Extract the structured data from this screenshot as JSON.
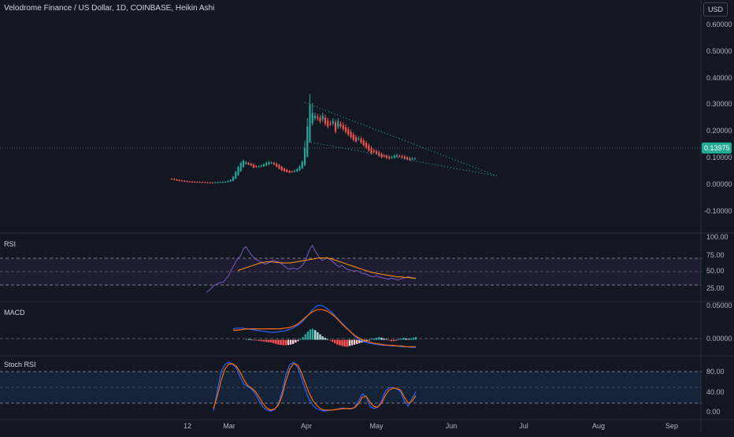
{
  "header": {
    "title": "Velodrome Finance / US Dollar, 1D, COINBASE, Heikin Ashi",
    "currency_button": "USD"
  },
  "colors": {
    "background": "#131722",
    "up": "#26a69a",
    "down": "#ef5350",
    "rsi_line": "#7e57c2",
    "rsi_ma": "#ff9800",
    "macd_line": "#2962ff",
    "signal_line": "#ff6d00",
    "stoch_k": "#2962ff",
    "stoch_d": "#ff6d00",
    "trendline": "#26a69a",
    "price_label_bg": "#22ab94"
  },
  "x_axis": {
    "labels": [
      "12",
      "Mar",
      "Apr",
      "May",
      "Jun",
      "Jul",
      "Aug",
      "Sep"
    ]
  },
  "chart_data": [
    {
      "type": "candlestick",
      "name": "price",
      "title": "Velodrome Finance / US Dollar, 1D, COINBASE, Heikin Ashi",
      "y_ticks": [
        "0.60000",
        "0.50000",
        "0.40000",
        "0.30000",
        "0.20000",
        "0.10000",
        "0.00000",
        "-0.10000"
      ],
      "ylim": [
        -0.13,
        0.68
      ],
      "last_price": "0.13975",
      "candle_close": [
        0.063,
        0.06,
        0.058,
        0.056,
        0.055,
        0.054,
        0.053,
        0.053,
        0.052,
        0.052,
        0.052,
        0.051,
        0.051,
        0.05,
        0.05,
        0.05,
        0.05,
        0.051,
        0.051,
        0.052,
        0.052,
        0.053,
        0.056,
        0.06,
        0.072,
        0.09,
        0.108,
        0.124,
        0.132,
        0.126,
        0.118,
        0.114,
        0.106,
        0.108,
        0.11,
        0.113,
        0.118,
        0.123,
        0.126,
        0.124,
        0.118,
        0.11,
        0.102,
        0.096,
        0.093,
        0.09,
        0.088,
        0.09,
        0.094,
        0.1,
        0.11,
        0.128,
        0.18,
        0.26,
        0.34,
        0.31,
        0.3,
        0.29,
        0.28,
        0.3,
        0.27,
        0.26,
        0.27,
        0.28,
        0.24,
        0.28,
        0.26,
        0.25,
        0.24,
        0.23,
        0.22,
        0.21,
        0.205,
        0.215,
        0.2,
        0.19,
        0.18,
        0.17,
        0.16,
        0.165,
        0.158,
        0.15,
        0.145,
        0.148,
        0.142,
        0.14,
        0.145,
        0.15,
        0.152,
        0.148,
        0.145,
        0.14,
        0.138,
        0.135,
        0.14,
        0.13975
      ],
      "trendlines": [
        {
          "from": {
            "day": 52,
            "price": 0.35
          },
          "to": {
            "day": 127,
            "price": 0.075
          }
        },
        {
          "from": {
            "day": 52,
            "price": 0.205
          },
          "to": {
            "day": 127,
            "price": 0.075
          }
        }
      ]
    },
    {
      "type": "line",
      "name": "RSI",
      "label": "RSI",
      "y_ticks": [
        "100.00",
        "75.00",
        "50.00",
        "25.00"
      ],
      "ylim": [
        20,
        103
      ],
      "band": [
        30,
        70
      ],
      "rsi": [
        14,
        16,
        20,
        24,
        26,
        28,
        29,
        30,
        35,
        40,
        48,
        55,
        62,
        68,
        72,
        82,
        86,
        80,
        74,
        70,
        66,
        64,
        62,
        60,
        58,
        60,
        62,
        64,
        63,
        62,
        60,
        57,
        54,
        51,
        50,
        52,
        51,
        50,
        53,
        56,
        62,
        72,
        82,
        88,
        80,
        74,
        68,
        64,
        66,
        69,
        66,
        63,
        60,
        56,
        54,
        56,
        53,
        50,
        49,
        48,
        47,
        48,
        46,
        44,
        43,
        42,
        40,
        39,
        38,
        40,
        38,
        37,
        36,
        35,
        34,
        36,
        35,
        34,
        33,
        35,
        36,
        37,
        38,
        37,
        36,
        35
      ],
      "rsi_start_day": 0,
      "rsi_ma": [
        48,
        50,
        52,
        54,
        56,
        58,
        60,
        61,
        62,
        62,
        61,
        61,
        60,
        60,
        60,
        61,
        62,
        63,
        64,
        65,
        66,
        67,
        68,
        68,
        68,
        67,
        65,
        63,
        61,
        59,
        57,
        55,
        53,
        51,
        49,
        47,
        45,
        44,
        43,
        42,
        41,
        40,
        39,
        38,
        38,
        37,
        37,
        36,
        36
      ]
    },
    {
      "type": "histogram+line",
      "name": "MACD",
      "label": "MACD",
      "y_ticks": [
        "0.05000",
        "0.00000"
      ],
      "ylim": [
        -0.02,
        0.052
      ],
      "histogram": [
        0.001,
        0.0008,
        0.0005,
        -0.0005,
        -0.001,
        -0.0015,
        -0.002,
        -0.0025,
        -0.003,
        -0.0035,
        -0.004,
        -0.005,
        -0.006,
        -0.007,
        -0.0075,
        -0.008,
        -0.008,
        -0.0075,
        -0.007,
        -0.006,
        -0.004,
        -0.002,
        0.001,
        0.004,
        0.008,
        0.012,
        0.015,
        0.016,
        0.014,
        0.011,
        0.008,
        0.005,
        0.003,
        0.001,
        -0.001,
        -0.003,
        -0.005,
        -0.007,
        -0.008,
        -0.009,
        -0.01,
        -0.01,
        -0.009,
        -0.008,
        -0.007,
        -0.006,
        -0.005,
        -0.004,
        -0.003,
        -0.002,
        -0.001,
        0.001,
        0.002,
        0.003,
        0.004,
        0.003,
        0.002,
        0.001,
        -0.001,
        -0.002,
        -0.002,
        -0.001,
        0.001,
        0.002,
        0.003,
        0.002,
        0.001,
        0.002,
        0.003,
        0.004
      ],
      "macd": [
        0.016,
        0.017,
        0.017,
        0.016,
        0.015,
        0.014,
        0.013,
        0.012,
        0.011,
        0.011,
        0.012,
        0.013,
        0.015,
        0.018,
        0.022,
        0.028,
        0.036,
        0.044,
        0.05,
        0.05,
        0.046,
        0.04,
        0.033,
        0.026,
        0.019,
        0.012,
        0.005,
        0,
        -0.003,
        -0.005,
        -0.006,
        -0.007,
        -0.008,
        -0.008,
        -0.009,
        -0.009,
        -0.01,
        -0.01,
        -0.011,
        -0.011
      ],
      "signal": [
        0.014,
        0.014,
        0.015,
        0.016,
        0.016,
        0.016,
        0.016,
        0.016,
        0.016,
        0.016,
        0.016,
        0.017,
        0.018,
        0.02,
        0.024,
        0.03,
        0.036,
        0.041,
        0.044,
        0.044,
        0.042,
        0.038,
        0.032,
        0.025,
        0.018,
        0.012,
        0.006,
        0.002,
        -0.001,
        -0.003,
        -0.005,
        -0.006,
        -0.007,
        -0.008,
        -0.008,
        -0.009,
        -0.009,
        -0.01,
        -0.01,
        -0.01
      ]
    },
    {
      "type": "line",
      "name": "Stoch RSI",
      "label": "Stoch RSI",
      "y_ticks": [
        "80.00",
        "40.00",
        "0.00"
      ],
      "ylim": [
        -8,
        108
      ],
      "band": [
        20,
        80
      ],
      "k": [
        0,
        40,
        80,
        95,
        100,
        96,
        88,
        70,
        55,
        50,
        45,
        35,
        20,
        8,
        2,
        0,
        3,
        15,
        40,
        75,
        95,
        100,
        90,
        70,
        45,
        25,
        12,
        5,
        2,
        0,
        1,
        2,
        3,
        5,
        6,
        5,
        4,
        8,
        20,
        35,
        30,
        10,
        5,
        8,
        20,
        40,
        48,
        48,
        45,
        40,
        20,
        10,
        25,
        40
      ],
      "d": [
        5,
        30,
        62,
        86,
        96,
        97,
        92,
        80,
        64,
        52,
        47,
        40,
        28,
        15,
        6,
        2,
        4,
        12,
        32,
        62,
        86,
        97,
        95,
        80,
        58,
        38,
        22,
        12,
        5,
        2,
        2,
        2,
        3,
        4,
        5,
        5,
        5,
        7,
        15,
        28,
        30,
        18,
        9,
        8,
        16,
        32,
        43,
        47,
        46,
        43,
        28,
        16,
        20,
        32
      ]
    }
  ]
}
